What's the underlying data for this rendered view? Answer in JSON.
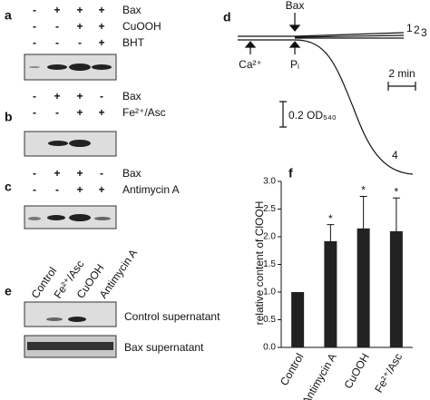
{
  "panels": {
    "a": {
      "label": "a",
      "rows": [
        {
          "name": "Bax",
          "signs": [
            "-",
            "+",
            "+",
            "+"
          ]
        },
        {
          "name": "CuOOH",
          "signs": [
            "-",
            "-",
            "+",
            "+"
          ]
        },
        {
          "name": "BHT",
          "signs": [
            "-",
            "-",
            "-",
            "+"
          ]
        }
      ]
    },
    "b": {
      "label": "b",
      "rows": [
        {
          "name": "Bax",
          "signs": [
            "-",
            "+",
            "+",
            "-"
          ]
        },
        {
          "name": "Fe²⁺/Asc",
          "signs": [
            "-",
            "-",
            "+",
            "+"
          ]
        }
      ]
    },
    "c": {
      "label": "c",
      "rows": [
        {
          "name": "Bax",
          "signs": [
            "-",
            "+",
            "+",
            "-"
          ]
        },
        {
          "name": "Antimycin A",
          "signs": [
            "-",
            "-",
            "+",
            "+"
          ]
        }
      ]
    },
    "d": {
      "label": "d",
      "bax": "Bax",
      "ca": "Ca²⁺",
      "pi": "Pᵢ",
      "scale_time": "2 min",
      "scale_od": "0.2 OD₅₄₀",
      "trace_labels": [
        "1",
        "2",
        "3",
        "4"
      ]
    },
    "e": {
      "label": "e",
      "lanes": [
        "Control",
        "Fe²⁺/Asc",
        "CuOOH",
        "Antimycin A"
      ],
      "blots": [
        "Control supernatant",
        "Bax supernatant"
      ]
    }
  },
  "chart_data": {
    "type": "bar",
    "panel_label": "f",
    "y_label": "relative content of ClOOH",
    "categories": [
      "Control",
      "Antimycin A",
      "CuOOH",
      "Fe²⁺/Asc"
    ],
    "values": [
      1.0,
      1.92,
      2.15,
      2.1
    ],
    "errors": [
      0,
      0.3,
      0.58,
      0.6
    ],
    "annotations": [
      "*",
      "*",
      "*"
    ],
    "color": "#222222",
    "ylim": [
      0,
      3
    ],
    "yticks": [
      {
        "value": 0,
        "label": "0.0"
      },
      0.5,
      {
        "value": 1,
        "label": "1.0"
      },
      1.5,
      {
        "value": 2,
        "label": "2.0"
      },
      2.5,
      {
        "value": 3,
        "label": "3.0"
      }
    ]
  }
}
